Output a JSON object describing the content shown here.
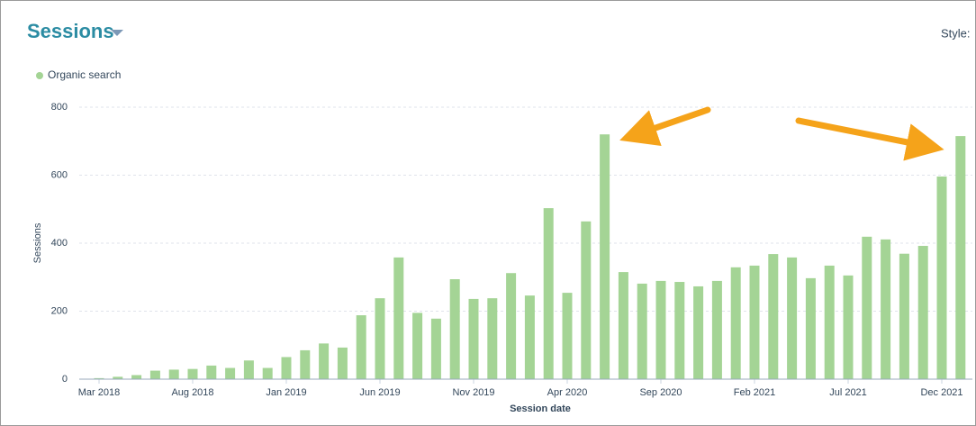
{
  "chart_data": {
    "type": "bar",
    "title": "Sessions",
    "style_label": "Style:",
    "x_label": "Session date",
    "y_label": "Sessions",
    "categories": [
      "Mar 2018",
      null,
      null,
      null,
      null,
      "Aug 2018",
      null,
      null,
      null,
      null,
      "Jan 2019",
      null,
      null,
      null,
      null,
      "Jun 2019",
      null,
      null,
      null,
      null,
      "Nov 2019",
      null,
      null,
      null,
      null,
      "Apr 2020",
      null,
      null,
      null,
      null,
      "Sep 2020",
      null,
      null,
      null,
      null,
      "Feb 2021",
      null,
      null,
      null,
      null,
      "Jul 2021",
      null,
      null,
      null,
      null,
      "Dec 2021",
      null
    ],
    "series": [
      {
        "name": "Organic search",
        "color": "#a4d495",
        "values": [
          3,
          7,
          12,
          25,
          28,
          30,
          40,
          33,
          55,
          33,
          65,
          85,
          105,
          93,
          188,
          238,
          358,
          195,
          178,
          294,
          236,
          238,
          312,
          246,
          503,
          254,
          464,
          720,
          315,
          281,
          289,
          286,
          273,
          289,
          329,
          334,
          368,
          358,
          297,
          334,
          305,
          419,
          411,
          369,
          392,
          596,
          715
        ]
      }
    ],
    "ylim": [
      0,
      800
    ],
    "yticks": [
      0,
      200,
      400,
      600,
      800
    ],
    "grid": true
  }
}
